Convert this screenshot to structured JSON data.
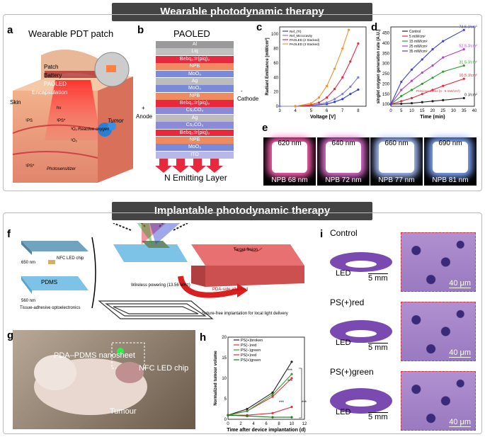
{
  "banner_top": "Wearable photodynamic therapy",
  "banner_bottom": "Implantable photodynamic therapy",
  "panel_a": {
    "letter": "a",
    "title": "Wearable PDT patch",
    "labels": [
      "Patch",
      "Battery",
      "PAOLED",
      "Encapsulation",
      "Skin",
      "Tumor",
      "Reactive oxygen",
      "Photosensitizer",
      "hν",
      "¹PS",
      "³PS*",
      "³O₂",
      "¹O₂",
      "¹PS*"
    ]
  },
  "panel_b": {
    "letter": "b",
    "title": "PAOLED",
    "layers": [
      "Al",
      "Liq",
      "Bebq₂:Ir(piq)₃",
      "NPB",
      "MoO₃",
      "Ag",
      "MoO₃",
      "NPB",
      "Bebq₂:Ir(piq)₃",
      "Cs₂CO₃",
      "Ag",
      "Cs₂CO₃",
      "Bebq₂:Ir(piq)₃",
      "NPB",
      "MoO₃",
      "ITO"
    ],
    "cathode": "Cathode",
    "anode": "Anode",
    "plus": "+",
    "minus": "-",
    "footer": "N Emitting Layer"
  },
  "panel_c": {
    "letter": "c",
    "chart_data": {
      "type": "line",
      "xlabel": "Voltage [V]",
      "ylabel": "Radiant Emittance [mW/cm²]",
      "xlim": [
        3,
        8.5
      ],
      "ylim": [
        0,
        110
      ],
      "xticks": [
        "3",
        "4",
        "5",
        "6",
        "7",
        "8"
      ],
      "yticks": [
        "0",
        "20",
        "40",
        "60",
        "80",
        "100"
      ],
      "series": [
        {
          "name": "Ref_(TI)",
          "color": "#2a3fcf",
          "x": [
            3,
            4,
            5,
            6,
            6.5,
            7,
            7.5,
            8
          ],
          "y": [
            0,
            0,
            1,
            3,
            6,
            10,
            17,
            23
          ]
        },
        {
          "name": "Ref_Microcavity",
          "color": "#7a7ae0",
          "x": [
            3,
            4,
            5,
            6,
            6.5,
            7,
            7.5,
            8
          ],
          "y": [
            0,
            0,
            1,
            5,
            10,
            17,
            27,
            40
          ]
        },
        {
          "name": "PAOLED (2 Stacked)",
          "color": "#e8283c",
          "x": [
            4,
            5,
            5.5,
            6,
            6.5,
            7,
            7.5,
            8
          ],
          "y": [
            0,
            2,
            5,
            12,
            24,
            40,
            62,
            87
          ]
        },
        {
          "name": "PAOLED (3 Stacked)",
          "color": "#f4922a",
          "x": [
            4,
            5,
            5.5,
            6,
            6.5,
            7,
            7.4
          ],
          "y": [
            0,
            4,
            12,
            28,
            52,
            80,
            106
          ]
        }
      ]
    }
  },
  "panel_d": {
    "letter": "d",
    "chart_data": {
      "type": "line",
      "xlabel": "Time (min)",
      "ylabel": "singlet oxygen generation rate (A.U.)",
      "xlim": [
        0,
        40
      ],
      "ylim": [
        90,
        480
      ],
      "xticks": [
        "0",
        "5",
        "10",
        "15",
        "20",
        "25",
        "30",
        "35",
        "40"
      ],
      "yticks": [
        "100",
        "150",
        "200",
        "250",
        "300",
        "350",
        "400",
        "450"
      ],
      "series": [
        {
          "name": "Control",
          "color": "#222222",
          "x": [
            0,
            5,
            10,
            15,
            20,
            25,
            35
          ],
          "y": [
            100,
            102,
            105,
            110,
            115,
            120,
            130
          ]
        },
        {
          "name": "5 mW/cm²",
          "color": "#e8283c",
          "x": [
            0,
            5,
            10,
            15,
            20,
            25,
            35
          ],
          "y": [
            100,
            115,
            130,
            150,
            170,
            190,
            225
          ]
        },
        {
          "name": "15 mW/cm²",
          "color": "#2ca02c",
          "x": [
            0,
            5,
            10,
            15,
            20,
            25,
            35
          ],
          "y": [
            100,
            140,
            170,
            200,
            230,
            260,
            290
          ]
        },
        {
          "name": "25 mW/cm²",
          "color": "#b040d0",
          "x": [
            0,
            5,
            10,
            15,
            20,
            25,
            35
          ],
          "y": [
            100,
            170,
            215,
            255,
            290,
            330,
            370
          ]
        },
        {
          "name": "35 mW/cm²",
          "color": "#3f3fd8",
          "x": [
            0,
            5,
            10,
            15,
            20,
            25,
            35
          ],
          "y": [
            100,
            210,
            270,
            320,
            370,
            410,
            465
          ]
        }
      ],
      "annotations": [
        "73.5 J/cm²",
        "52.5 J/cm²",
        "31.5 J/cm²",
        "10.5 J/cm²",
        "0 J/cm²",
        "Previous works (3 - 5 mW/cm²)"
      ]
    }
  },
  "panel_e": {
    "letter": "e",
    "items": [
      {
        "wl": "620 nm",
        "npb": "NPB 68 nm",
        "color": "#ff5fb0"
      },
      {
        "wl": "640 nm",
        "npb": "NPB 72 nm",
        "color": "#e070d0"
      },
      {
        "wl": "660 nm",
        "npb": "NPB 77 nm",
        "color": "#a8c0ff"
      },
      {
        "wl": "690 nm",
        "npb": "NPB 81 nm",
        "color": "#80a8ff"
      }
    ]
  },
  "panel_f": {
    "letter": "f",
    "labels": [
      "PDA–PDMS",
      "NFC LED chip",
      "650 nm",
      "PDMS",
      "560 nm",
      "Tissue-adhesive optoelectronics",
      "Wireless powering (13.56 MHz)",
      "Target lesion",
      "PDA-side attached",
      "Suture-free implantation for local light delivery"
    ]
  },
  "panel_g": {
    "letter": "g",
    "labels": [
      "PDA–PDMS nanosheet",
      "NFC LED chip",
      "Tumour"
    ]
  },
  "panel_h": {
    "letter": "h",
    "chart_data": {
      "type": "line",
      "xlabel": "Time after device implantation (d)",
      "ylabel": "Normalized tumour volume",
      "xlim": [
        0,
        12
      ],
      "ylim": [
        0,
        20
      ],
      "xticks": [
        "0",
        "2",
        "4",
        "6",
        "8",
        "10",
        "12"
      ],
      "yticks": [
        "0",
        "5",
        "10",
        "15",
        "20"
      ],
      "series": [
        {
          "name": "PS(+)broken",
          "color": "#222222",
          "x": [
            0,
            3,
            7,
            10
          ],
          "y": [
            1,
            2.5,
            6.5,
            14
          ]
        },
        {
          "name": "PS(−)red",
          "color": "#e8283c",
          "x": [
            0,
            3,
            7,
            10
          ],
          "y": [
            1,
            2,
            5.5,
            10
          ]
        },
        {
          "name": "PS(−)green",
          "color": "#2ca02c",
          "x": [
            0,
            3,
            7,
            10
          ],
          "y": [
            1,
            2,
            6,
            11
          ]
        },
        {
          "name": "PS(+)red",
          "color": "#e8283c",
          "x": [
            0,
            3,
            7,
            10
          ],
          "y": [
            1,
            1,
            1.5,
            3
          ]
        },
        {
          "name": "PS(+)green",
          "color": "#1a7a1a",
          "x": [
            0,
            3,
            7,
            10
          ],
          "y": [
            1,
            0.8,
            0.5,
            0.5
          ]
        }
      ],
      "significance": [
        "***",
        "***",
        "***",
        "***"
      ]
    }
  },
  "panel_i": {
    "letter": "i",
    "rows": [
      {
        "title": "Control",
        "led": "LED",
        "scale_low": "5 mm",
        "scale_high": "40 μm"
      },
      {
        "title": "PS(+)red",
        "led": "LED",
        "scale_low": "5 mm",
        "scale_high": "40 μm"
      },
      {
        "title": "PS(+)green",
        "led": "LED",
        "scale_low": "5 mm",
        "scale_high": "40 μm"
      }
    ]
  }
}
